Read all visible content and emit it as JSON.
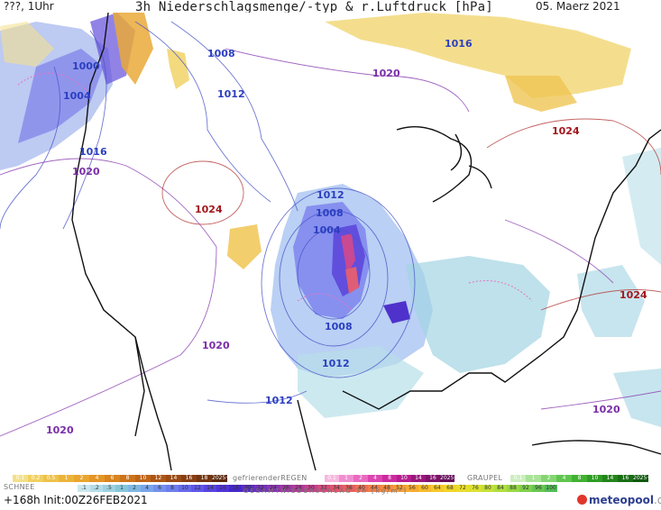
{
  "header": {
    "run_label": "???, 1Uhr",
    "title": "3h Niederschlagsmenge/-typ & r.Luftdruck [hPa]",
    "date": "05. Maerz 2021"
  },
  "isobars": [
    {
      "label": "1000",
      "tier": "low"
    },
    {
      "label": "1004",
      "tier": "low"
    },
    {
      "label": "1008",
      "tier": "low"
    },
    {
      "label": "1012",
      "tier": "low"
    },
    {
      "label": "1016",
      "tier": "low"
    },
    {
      "label": "1020",
      "tier": "mid"
    },
    {
      "label": "1024",
      "tier": "high"
    },
    {
      "label": "1012",
      "tier": "low"
    },
    {
      "label": "1008",
      "tier": "low"
    },
    {
      "label": "1004",
      "tier": "low"
    },
    {
      "label": "1008",
      "tier": "low"
    },
    {
      "label": "1012",
      "tier": "low"
    },
    {
      "label": "1012",
      "tier": "low"
    },
    {
      "label": "1020",
      "tier": "mid"
    },
    {
      "label": "1020",
      "tier": "mid"
    },
    {
      "label": "1024",
      "tier": "high"
    },
    {
      "label": "1020",
      "tier": "mid"
    },
    {
      "label": "1016",
      "tier": "low"
    },
    {
      "label": "1020",
      "tier": "mid"
    },
    {
      "label": "1024",
      "tier": "high"
    },
    {
      "label": "1020",
      "tier": "mid"
    }
  ],
  "legend": {
    "snow": {
      "title": "SCHNEE",
      "values": [
        "0.1",
        "0.2",
        "0.5",
        "1",
        "2",
        "4",
        "6",
        "8",
        "10",
        "12",
        "14",
        "16",
        "18",
        "2025+"
      ],
      "colors": [
        "#f3e08a",
        "#f0d060",
        "#eec24a",
        "#ecb43a",
        "#e9a52e",
        "#e39526",
        "#d9841f",
        "#cd741b",
        "#be6418",
        "#ad5616",
        "#9a4a14",
        "#873f12",
        "#733510",
        "#5c2a0e"
      ]
    },
    "freezing_rain": {
      "title": "gefrierenderREGEN",
      "values": [
        "0.1",
        "1",
        "2",
        "4",
        "8",
        "10",
        "14",
        "16",
        "2025+"
      ],
      "colors": [
        "#f7b8df",
        "#f08fcf",
        "#e86bc0",
        "#dc46b0",
        "#cc2aa0",
        "#b41d8e",
        "#9a177c",
        "#7e126a",
        "#630e57"
      ]
    },
    "hail": {
      "title": "GRAUPEL",
      "values": [
        "0.1",
        "1",
        "2",
        "4",
        "8",
        "10",
        "14",
        "16",
        "2025+"
      ],
      "colors": [
        "#cdeec0",
        "#a9e398",
        "#84d572",
        "#5fc54e",
        "#42b233",
        "#2f9c25",
        "#23851b",
        "#196e14",
        "#11580e"
      ]
    },
    "total": {
      "title": "GESAMTNIEDERSCHLAG 3h [kg/m²]",
      "values": [
        ".1",
        ".2",
        ".5",
        "1",
        "2",
        "4",
        "6",
        "8",
        "10",
        "12",
        "14",
        "16",
        "18",
        "20",
        "22",
        "24",
        "26",
        "28",
        "30",
        "32",
        "34",
        "36",
        "40",
        "44",
        "48",
        "52",
        "56",
        "60",
        "64",
        "68",
        "72",
        "76",
        "80",
        "84",
        "88",
        "92",
        "96",
        "100"
      ],
      "colors": [
        "#cbe7ee",
        "#b4dde8",
        "#9dd2e1",
        "#86c6da",
        "#7eb7e3",
        "#7aa4ea",
        "#7390ec",
        "#6c7ded",
        "#6569ec",
        "#5e56e8",
        "#5743e0",
        "#4f33d6",
        "#4627c9",
        "#5b2dbf",
        "#7131b7",
        "#8735ae",
        "#9d38a4",
        "#b23b99",
        "#c7408d",
        "#d44a7e",
        "#de566e",
        "#e66260",
        "#ec7055",
        "#f07e4a",
        "#f48d40",
        "#f69c37",
        "#f7ab30",
        "#f7ba2b",
        "#f6c828",
        "#f2d427",
        "#e8dd2a",
        "#d9e130",
        "#c6e137",
        "#b0de3e",
        "#98d845",
        "#7fd04c",
        "#68c652",
        "#53bb56"
      ]
    }
  },
  "footer": {
    "forecast_hour": "+168h",
    "init": "Init:00Z26FEB2021"
  },
  "brand": {
    "name": "meteopool",
    "tld": ".org"
  }
}
